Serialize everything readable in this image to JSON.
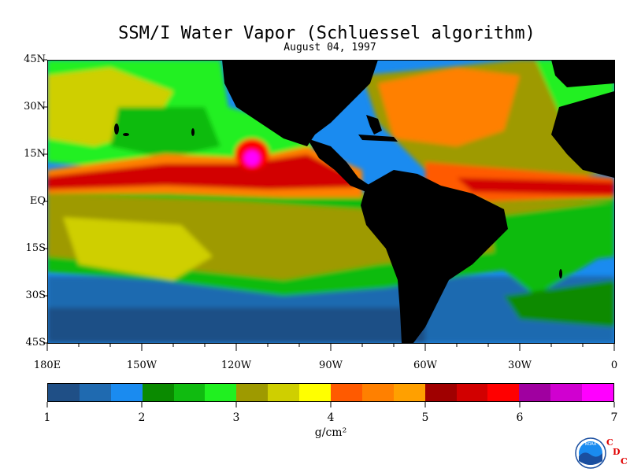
{
  "title": "SSM/I Water Vapor (Schluessel algorithm)",
  "subtitle": "August 04, 1997",
  "lat_labels": [
    "45N",
    "30N",
    "15N",
    "EQ",
    "15S",
    "30S",
    "45S"
  ],
  "lon_labels": [
    "180E",
    "150W",
    "120W",
    "90W",
    "60W",
    "30W",
    "0"
  ],
  "colorbar": {
    "colors": [
      "#1f4f86",
      "#1f6ab0",
      "#1a8bf0",
      "#0a8a00",
      "#10bb10",
      "#20f020",
      "#9e9a00",
      "#cfcf00",
      "#ffff00",
      "#ff5a00",
      "#ff8000",
      "#ffa000",
      "#a00000",
      "#d20000",
      "#ff0000",
      "#a000a0",
      "#d000d0",
      "#ff00ff"
    ],
    "tick_labels": [
      "1",
      "2",
      "3",
      "4",
      "5",
      "6",
      "7"
    ],
    "units": "g/cm²"
  },
  "logo": {
    "text": "NOAA",
    "letters": [
      "C",
      "D",
      "C"
    ]
  },
  "palette": {
    "land": "#000000",
    "ocean_dry": "#1f4f86"
  }
}
